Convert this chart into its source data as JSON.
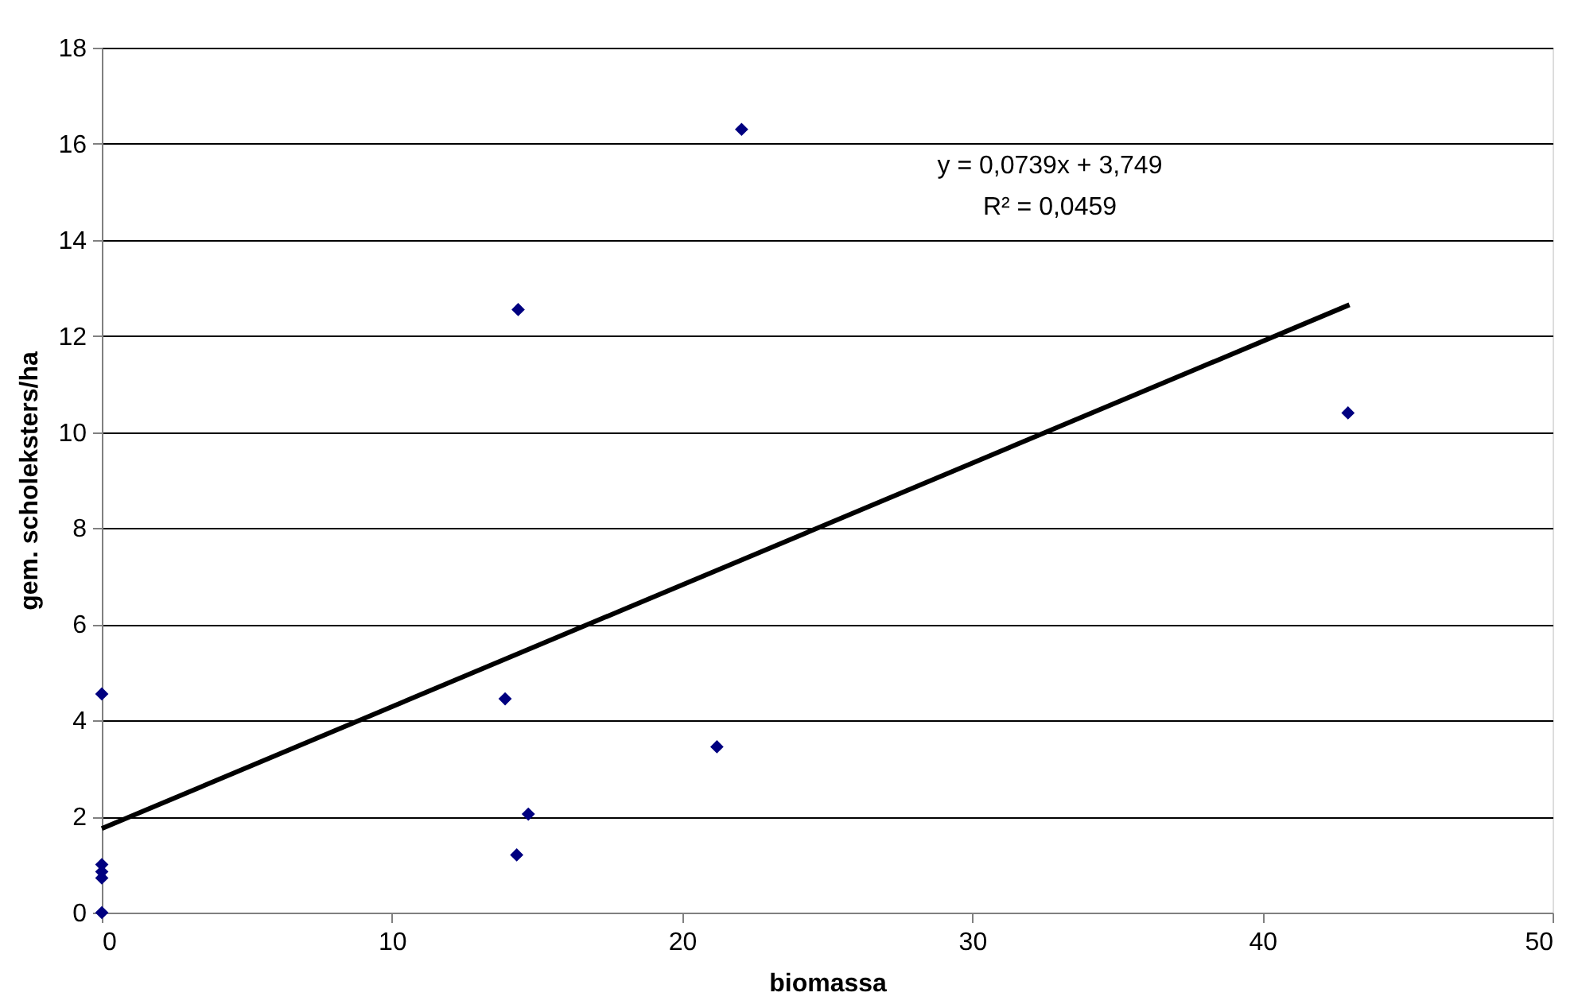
{
  "chart_data": {
    "type": "scatter",
    "xlabel": "biomassa",
    "ylabel": "gem. scholeksters/ha",
    "xlim": [
      0,
      50
    ],
    "xticks": [
      0,
      10,
      20,
      30,
      40,
      50
    ],
    "ylim": [
      0,
      18
    ],
    "yticks": [
      0,
      2,
      4,
      6,
      8,
      10,
      12,
      14,
      16,
      18
    ],
    "grid": "y",
    "marker": "diamond",
    "series": [
      {
        "color": "#000080",
        "x": [
          0,
          0,
          0,
          0,
          0,
          13.9,
          14.35,
          14.3,
          14.7,
          21.2,
          22.05,
          42.95
        ],
        "values": [
          0,
          0.72,
          0.85,
          1.0,
          4.55,
          4.45,
          12.55,
          1.2,
          2.05,
          3.45,
          16.3,
          10.4
        ]
      },
      {
        "type": "line",
        "color": "#000000",
        "marker": "none",
        "line_style": "solid",
        "x": [
          0,
          43
        ],
        "values": [
          1.75,
          12.65
        ]
      }
    ],
    "annotations": [
      "y = 0,0739x + 3,749",
      "R² = 0,0459"
    ]
  }
}
